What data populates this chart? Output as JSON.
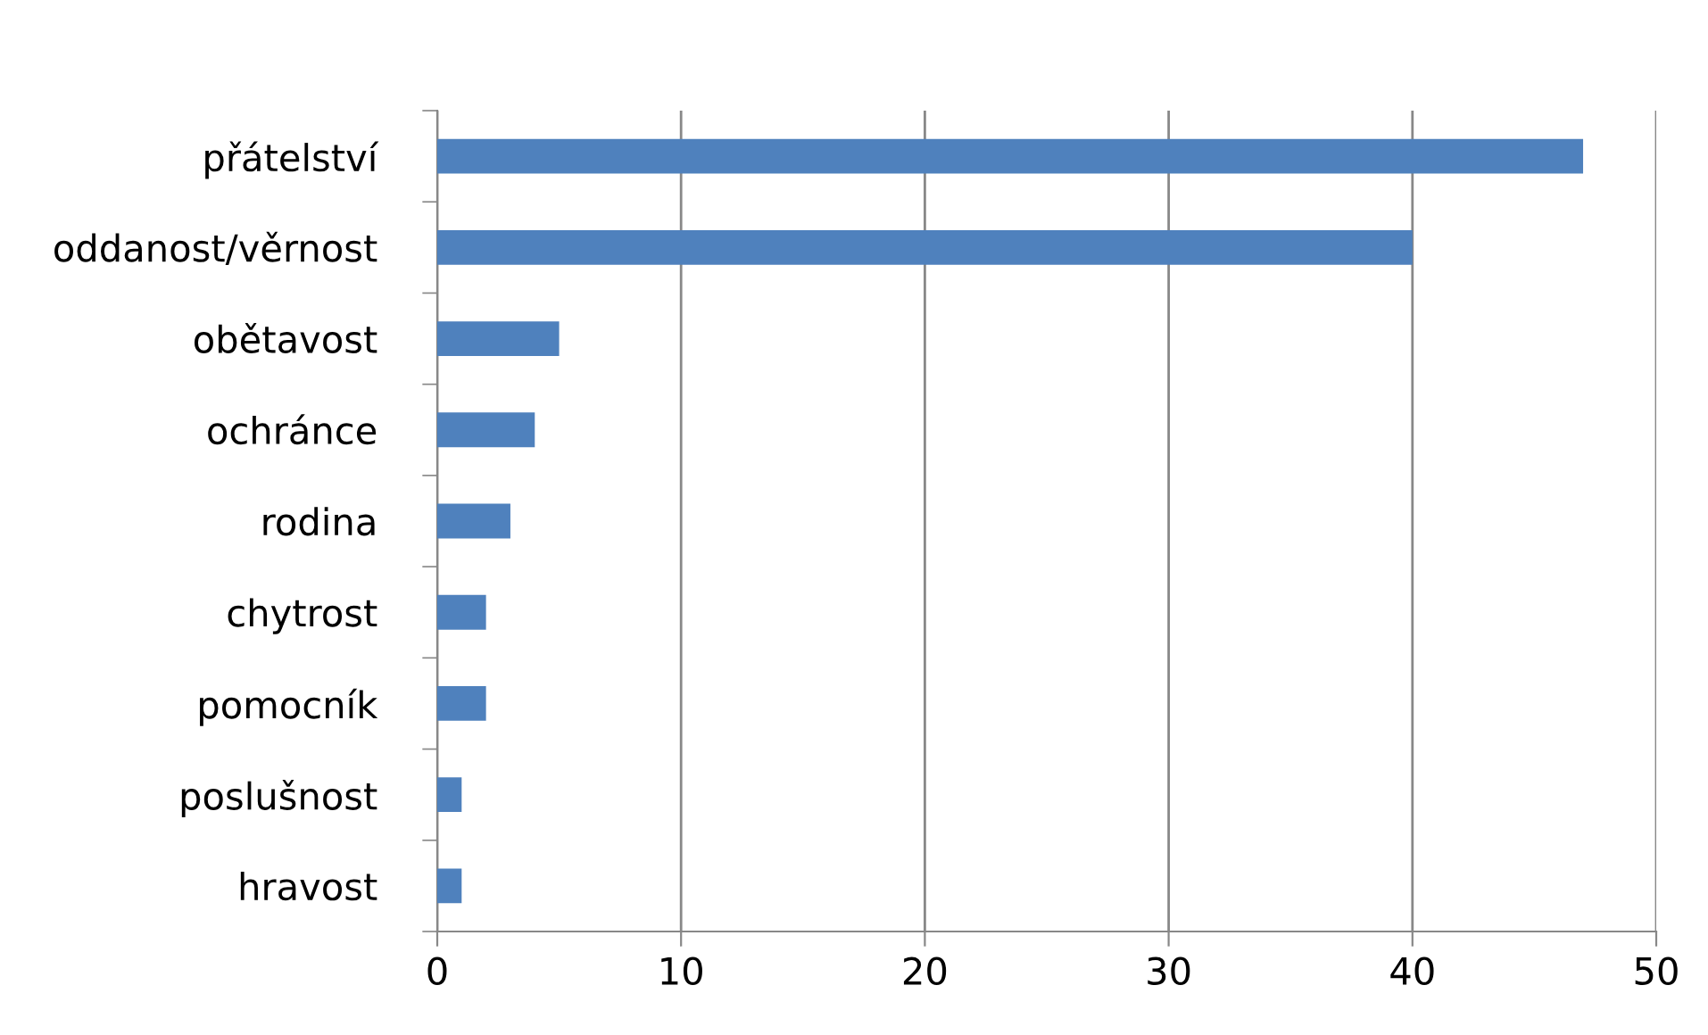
{
  "chart_data": {
    "type": "bar",
    "orientation": "horizontal",
    "categories": [
      "přátelství",
      "oddanost/věrnost",
      "obětavost",
      "ochránce",
      "rodina",
      "chytrost",
      "pomocník",
      "poslušnost",
      "hravost"
    ],
    "values": [
      47,
      40,
      5,
      4,
      3,
      2,
      2,
      1,
      1
    ],
    "color": "#4f81bd",
    "xlim": [
      0,
      50
    ],
    "xticks": [
      0,
      10,
      20,
      30,
      40,
      50
    ],
    "grid": "x"
  }
}
